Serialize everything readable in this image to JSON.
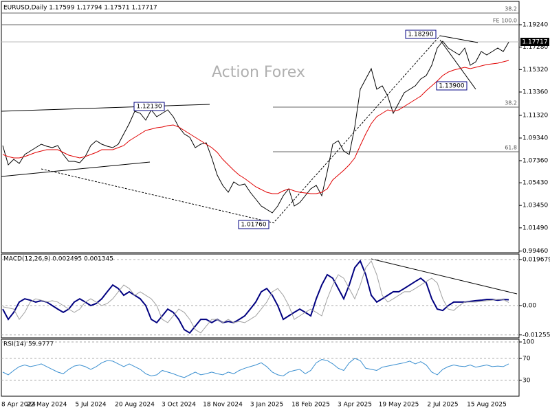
{
  "chart_data": [
    {
      "type": "line",
      "title": "EURUSD,Daily  1.17599 1.17794 1.17571 1.17717",
      "watermark": "Action Forex",
      "annotations": [
        "1.18290",
        "1.13900",
        "1.01760",
        "1.12130",
        "38.2",
        "FE 100.0",
        "38.2",
        "61.8",
        "1.17717"
      ],
      "ylim": [
        0.9932,
        1.2116
      ],
      "yticks": [
        {
          "value": 1.1924,
          "label": "1.19240"
        },
        {
          "value": 1.1728,
          "label": "1.17280"
        },
        {
          "value": 1.1532,
          "label": "1.15320"
        },
        {
          "value": 1.1336,
          "label": "1.13360"
        },
        {
          "value": 1.1132,
          "label": "1.11320"
        },
        {
          "value": 1.0934,
          "label": "1.09340"
        },
        {
          "value": 1.0736,
          "label": "1.07360"
        },
        {
          "value": 1.0543,
          "label": "1.05430"
        },
        {
          "value": 1.0345,
          "label": "1.03450"
        },
        {
          "value": 1.0149,
          "label": "1.01490"
        },
        {
          "value": 0.9946,
          "label": "0.99460"
        }
      ],
      "grid": false,
      "series": [
        {
          "color": "#000000",
          "values": [
            1.0868,
            1.07,
            1.0748,
            1.0712,
            1.079,
            1.082,
            1.085,
            1.088,
            1.0862,
            1.085,
            1.0868,
            1.079,
            1.073,
            1.073,
            1.0718,
            1.0772,
            1.0868,
            1.091,
            1.088,
            1.0862,
            1.085,
            1.088,
            1.097,
            1.106,
            1.1168,
            1.115,
            1.109,
            1.118,
            1.112,
            1.115,
            1.118,
            1.112,
            1.103,
            1.097,
            1.094,
            1.085,
            1.088,
            1.0892,
            1.076,
            1.061,
            1.052,
            1.046,
            1.055,
            1.052,
            1.0532,
            1.046,
            1.04,
            1.034,
            1.031,
            1.028,
            1.034,
            1.043,
            1.049,
            1.034,
            1.037,
            1.043,
            1.049,
            1.052,
            1.043,
            1.064,
            1.088,
            1.091,
            1.082,
            1.079,
            1.103,
            1.136,
            1.145,
            1.154,
            1.136,
            1.139,
            1.13,
            1.115,
            1.124,
            1.133,
            1.136,
            1.139,
            1.145,
            1.148,
            1.157,
            1.172,
            1.178,
            1.172,
            1.169,
            1.166,
            1.172,
            1.157,
            1.16,
            1.169,
            1.166,
            1.169,
            1.172,
            1.169,
            1.1772
          ]
        },
        {
          "color": "#e00000",
          "values": [
            1.079,
            1.0772,
            1.076,
            1.076,
            1.0772,
            1.079,
            1.0808,
            1.082,
            1.0832,
            1.0832,
            1.0832,
            1.0808,
            1.0784,
            1.0772,
            1.076,
            1.0772,
            1.079,
            1.0808,
            1.0832,
            1.0832,
            1.0832,
            1.085,
            1.0868,
            1.091,
            1.094,
            1.097,
            1.1,
            1.1012,
            1.1024,
            1.103,
            1.1042,
            1.1048,
            1.103,
            1.1,
            1.097,
            1.094,
            1.091,
            1.088,
            1.085,
            1.0808,
            1.0748,
            1.07,
            1.0652,
            1.061,
            1.058,
            1.0544,
            1.0508,
            1.0484,
            1.046,
            1.0448,
            1.0448,
            1.0472,
            1.049,
            1.0472,
            1.046,
            1.0454,
            1.0448,
            1.0448,
            1.046,
            1.049,
            1.0568,
            1.061,
            1.0652,
            1.07,
            1.076,
            1.0868,
            1.097,
            1.106,
            1.112,
            1.115,
            1.118,
            1.1168,
            1.118,
            1.121,
            1.124,
            1.127,
            1.13,
            1.1348,
            1.139,
            1.1432,
            1.148,
            1.151,
            1.1528,
            1.154,
            1.1552,
            1.154,
            1.1552,
            1.1564,
            1.1576,
            1.1582,
            1.1588,
            1.16,
            1.1612
          ]
        }
      ]
    },
    {
      "type": "line",
      "title": "MACD(12,26,9) 0.002495 0.001345",
      "ylim": [
        -0.0138,
        0.02203
      ],
      "yticks": [
        0.019679,
        {
          "value": 0,
          "label": "0.00"
        },
        -0.012552
      ],
      "grid": true,
      "series": [
        {
          "color": "#000080",
          "values": [
            -0.0015,
            -0.0059,
            -0.0029,
            0.0015,
            0.0029,
            0.0023,
            0.0015,
            0.0021,
            0.0015,
            0,
            -0.0015,
            -0.0029,
            -0.0015,
            0.0015,
            0.0029,
            0.0015,
            0,
            0.0009,
            0.0029,
            0.0059,
            0.0088,
            0.0073,
            0.0044,
            0.0059,
            0.0044,
            0.0029,
            0,
            -0.0059,
            -0.0073,
            -0.0044,
            -0.0015,
            -0.0029,
            -0.0059,
            -0.0103,
            -0.0117,
            -0.0088,
            -0.0059,
            -0.0059,
            -0.0073,
            -0.0059,
            -0.0073,
            -0.0068,
            -0.0073,
            -0.0059,
            -0.0044,
            -0.0015,
            0.0015,
            0.0059,
            0.0073,
            0.0044,
            0,
            -0.0059,
            -0.0044,
            -0.0029,
            -0.0015,
            -0.0029,
            -0.0044,
            0.0029,
            0.0088,
            0.0132,
            0.0117,
            0.0073,
            0.0029,
            0.0088,
            0.0162,
            0.0191,
            0.0132,
            0.0044,
            0.0015,
            0.0029,
            0.0044,
            0.0059,
            0.0059,
            0.0073,
            0.0088,
            0.0103,
            0.0117,
            0.0097,
            0.0029,
            -0.0015,
            -0.0021,
            0,
            0.0015,
            0.0015,
            0.0015,
            0.0018,
            0.0021,
            0.0023,
            0.0026,
            0.0026,
            0.0023,
            0.0026,
            0.0025
          ]
        },
        {
          "color": "#a0a0a0",
          "values": [
            -0.0005,
            -0.001,
            -0.0015,
            -0.0059,
            -0.0029,
            0.0015,
            0.0029,
            0.0023,
            0.0015,
            0.0021,
            0.0015,
            0,
            -0.0015,
            -0.0029,
            -0.0015,
            0.0015,
            0.0029,
            0.0015,
            0,
            0.0009,
            0.0029,
            0.0059,
            0.0088,
            0.0073,
            0.0044,
            0.0059,
            0.0044,
            0.0029,
            0,
            -0.0059,
            -0.0073,
            -0.0044,
            -0.0015,
            -0.0029,
            -0.0059,
            -0.0103,
            -0.0117,
            -0.0088,
            -0.0059,
            -0.0059,
            -0.0073,
            -0.0059,
            -0.0073,
            -0.0068,
            -0.0073,
            -0.0059,
            -0.0044,
            -0.0015,
            0.0015,
            0.0059,
            0.0073,
            0.0044,
            0,
            -0.0059,
            -0.0044,
            -0.0029,
            -0.0015,
            -0.0029,
            -0.0044,
            0.0029,
            0.0088,
            0.0132,
            0.0117,
            0.0073,
            0.0029,
            0.0088,
            0.0162,
            0.0191,
            0.0132,
            0.0044,
            0.0015,
            0.0029,
            0.0044,
            0.0059,
            0.0059,
            0.0073,
            0.0088,
            0.0103,
            0.0117,
            0.0097,
            0.0029,
            -0.0015,
            -0.0021,
            0,
            0.0015,
            0.0015,
            0.0015,
            0.0018,
            0.0021,
            0.0023,
            0.0026,
            0.0026,
            0.0013
          ]
        }
      ]
    },
    {
      "type": "line",
      "title": "RSI(14) 59.9777",
      "ylim": [
        1,
        105
      ],
      "yticks": [
        100,
        70,
        30
      ],
      "grid": true,
      "categories": [
        "8 Apr 2024",
        null,
        null,
        null,
        null,
        null,
        null,
        null,
        "22 May 2024",
        null,
        null,
        null,
        null,
        null,
        null,
        null,
        "5 Jul 2024",
        null,
        null,
        null,
        null,
        null,
        null,
        null,
        "20 Aug 2024",
        null,
        null,
        null,
        null,
        null,
        null,
        null,
        "3 Oct 2024",
        null,
        null,
        null,
        null,
        null,
        null,
        null,
        "18 Nov 2024",
        null,
        null,
        null,
        null,
        null,
        null,
        null,
        "3 Jan 2025",
        null,
        null,
        null,
        null,
        null,
        null,
        null,
        "18 Feb 2025",
        null,
        null,
        null,
        null,
        null,
        null,
        null,
        "3 Apr 2025",
        null,
        null,
        null,
        null,
        null,
        null,
        null,
        "19 May 2025",
        null,
        null,
        null,
        null,
        null,
        null,
        null,
        "2 Jul 2025",
        null,
        null,
        null,
        null,
        null,
        null,
        null,
        "15 Aug 2025",
        null,
        null,
        null,
        null
      ],
      "series": [
        {
          "color": "#3a8fd0",
          "values": [
            45,
            40,
            48,
            55,
            58,
            55,
            57,
            60,
            55,
            50,
            45,
            42,
            50,
            56,
            58,
            55,
            50,
            55,
            62,
            66,
            65,
            60,
            55,
            60,
            55,
            50,
            42,
            38,
            40,
            48,
            45,
            42,
            38,
            35,
            40,
            45,
            40,
            42,
            45,
            42,
            40,
            45,
            42,
            48,
            52,
            55,
            58,
            62,
            55,
            45,
            40,
            38,
            45,
            48,
            50,
            42,
            48,
            62,
            68,
            66,
            60,
            52,
            48,
            62,
            70,
            66,
            52,
            50,
            48,
            54,
            56,
            58,
            60,
            62,
            65,
            60,
            64,
            58,
            45,
            40,
            50,
            55,
            58,
            56,
            55,
            58,
            54,
            56,
            58,
            55,
            56,
            55,
            60
          ]
        }
      ]
    }
  ]
}
